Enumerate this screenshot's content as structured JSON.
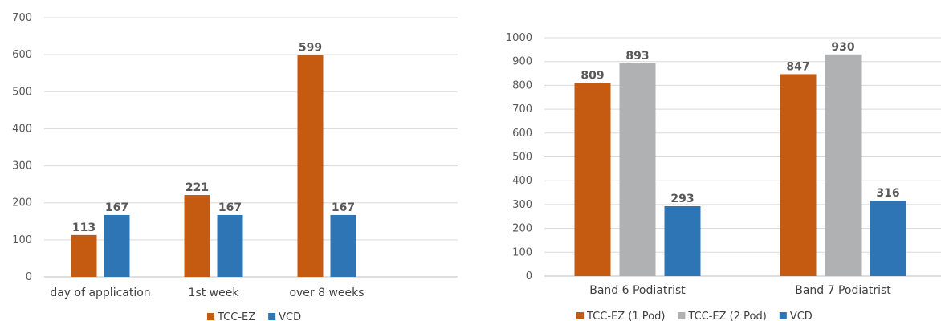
{
  "chart_data": [
    {
      "type": "bar",
      "categories": [
        "day of application",
        "1st week",
        "over 8 weeks"
      ],
      "series": [
        {
          "name": "TCC-EZ",
          "values": [
            113,
            221,
            599
          ],
          "color": "#c55a11"
        },
        {
          "name": "VCD",
          "values": [
            167,
            167,
            167
          ],
          "color": "#2e75b6"
        }
      ],
      "ylim": [
        0,
        700
      ],
      "yticks": [
        0,
        100,
        200,
        300,
        400,
        500,
        600,
        700
      ],
      "grid": true,
      "legend": "bottom"
    },
    {
      "type": "bar",
      "categories": [
        "Band 6 Podiatrist",
        "Band 7 Podiatrist"
      ],
      "series": [
        {
          "name": "TCC-EZ (1 Pod)",
          "values": [
            809,
            847
          ],
          "color": "#c55a11"
        },
        {
          "name": "TCC-EZ (2 Pod)",
          "values": [
            893,
            930
          ],
          "color": "#afb1b3"
        },
        {
          "name": "VCD",
          "values": [
            293,
            316
          ],
          "color": "#2e75b6"
        }
      ],
      "ylim": [
        0,
        1000
      ],
      "yticks": [
        0,
        100,
        200,
        300,
        400,
        500,
        600,
        700,
        800,
        900,
        1000
      ],
      "grid": true,
      "legend": "bottom"
    }
  ]
}
